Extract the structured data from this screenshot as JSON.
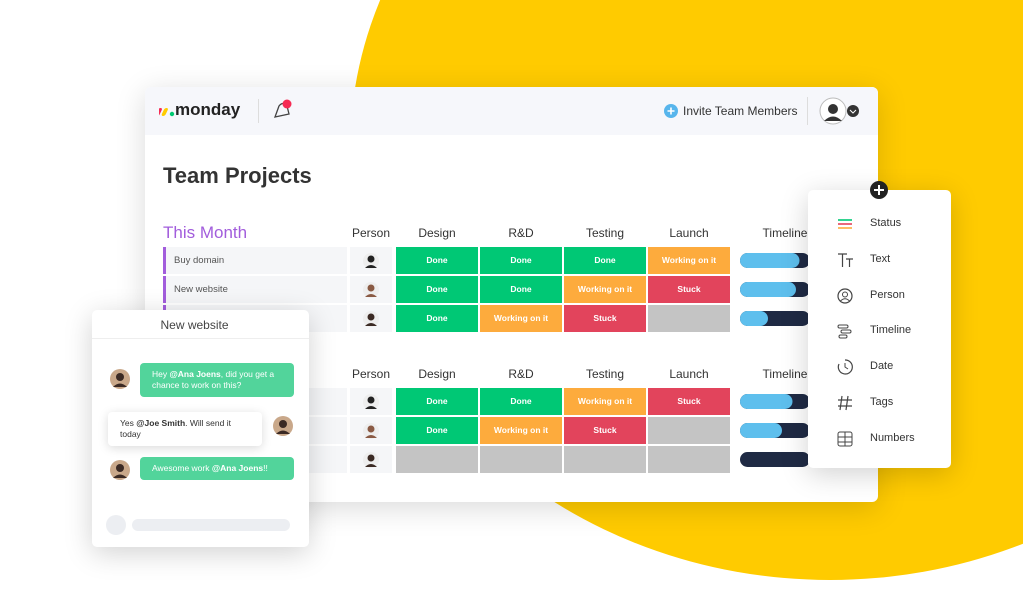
{
  "app": {
    "logo": "monday",
    "invite": "Invite Team Members"
  },
  "board": {
    "title": "Team Projects",
    "columns": [
      "Person",
      "Design",
      "R&D",
      "Testing",
      "Launch",
      "Timeline"
    ],
    "groups": [
      {
        "name": "This Month",
        "rows": [
          {
            "name": "Buy domain",
            "cells": [
              {
                "label": "Done",
                "color": "#00c875"
              },
              {
                "label": "Done",
                "color": "#00c875"
              },
              {
                "label": "Done",
                "color": "#00c875"
              },
              {
                "label": "Working on it",
                "color": "#fdab3d"
              }
            ]
          },
          {
            "name": "New website",
            "cells": [
              {
                "label": "Done",
                "color": "#00c875"
              },
              {
                "label": "Done",
                "color": "#00c875"
              },
              {
                "label": "Working on it",
                "color": "#fdab3d"
              },
              {
                "label": "Stuck",
                "color": "#e2445c"
              }
            ]
          },
          {
            "cells": [
              {
                "label": "Done",
                "color": "#00c875"
              },
              {
                "label": "Working on it",
                "color": "#fdab3d"
              },
              {
                "label": "Stuck",
                "color": "#e2445c"
              },
              null
            ]
          }
        ]
      },
      {
        "rows": [
          {
            "cells": [
              {
                "label": "Done",
                "color": "#00c875"
              },
              {
                "label": "Done",
                "color": "#00c875"
              },
              {
                "label": "Working on it",
                "color": "#fdab3d"
              },
              {
                "label": "Stuck",
                "color": "#e2445c"
              }
            ]
          },
          {
            "cells": [
              {
                "label": "Done",
                "color": "#00c875"
              },
              {
                "label": "Working on it",
                "color": "#fdab3d"
              },
              {
                "label": "Stuck",
                "color": "#e2445c"
              },
              null
            ]
          },
          {
            "cells": [
              null,
              null,
              null,
              null
            ]
          }
        ]
      }
    ]
  },
  "chat": {
    "title": "New website",
    "messages": [
      {
        "before": "Hey ",
        "mention": "@Ana Joens",
        "after": ", did you get a chance to work on this?"
      },
      {
        "before": "Yes ",
        "mention": "@Joe Smith",
        "after": ". Will send it today"
      },
      {
        "before": "Awesome work ",
        "mention": "@Ana Joens",
        "after": "!!"
      }
    ]
  },
  "column_menu": [
    "Status",
    "Text",
    "Person",
    "Timeline",
    "Date",
    "Tags",
    "Numbers"
  ]
}
